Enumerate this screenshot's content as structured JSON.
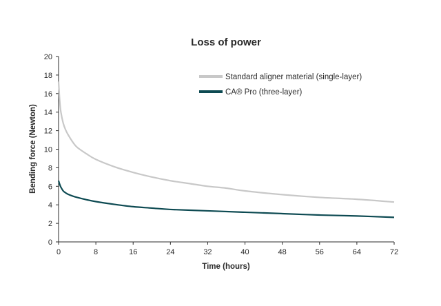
{
  "chart_data": {
    "type": "line",
    "title": "Loss of power",
    "xlabel": "Time (hours)",
    "ylabel": "Bending force (Newton)",
    "xlim": [
      0,
      72
    ],
    "ylim": [
      0,
      20
    ],
    "xticks": [
      0,
      8,
      16,
      24,
      32,
      40,
      48,
      56,
      64,
      72
    ],
    "yticks": [
      0,
      2,
      4,
      6,
      8,
      10,
      12,
      14,
      16,
      18,
      20
    ],
    "grid": false,
    "legend_position": "top-right",
    "series": [
      {
        "name": "Standard aligner material (single-layer)",
        "color": "#c8c8c8",
        "x": [
          0,
          0.25,
          0.5,
          1,
          1.5,
          2,
          3,
          4,
          6,
          8,
          12,
          16,
          20,
          24,
          28,
          32,
          36,
          40,
          48,
          56,
          64,
          72
        ],
        "y": [
          17.3,
          15.2,
          14.0,
          12.8,
          12.1,
          11.6,
          10.8,
          10.2,
          9.5,
          8.9,
          8.1,
          7.5,
          7.0,
          6.6,
          6.3,
          6.0,
          5.8,
          5.5,
          5.1,
          4.8,
          4.6,
          4.3
        ]
      },
      {
        "name": "CA® Pro (three-layer)",
        "color": "#0d4a52",
        "x": [
          0,
          0.25,
          0.5,
          1,
          1.5,
          2,
          3,
          4,
          6,
          8,
          12,
          16,
          20,
          24,
          32,
          40,
          48,
          56,
          64,
          72
        ],
        "y": [
          6.6,
          6.2,
          5.9,
          5.5,
          5.3,
          5.15,
          4.95,
          4.8,
          4.55,
          4.35,
          4.05,
          3.8,
          3.65,
          3.5,
          3.35,
          3.2,
          3.05,
          2.9,
          2.8,
          2.65
        ]
      }
    ]
  }
}
